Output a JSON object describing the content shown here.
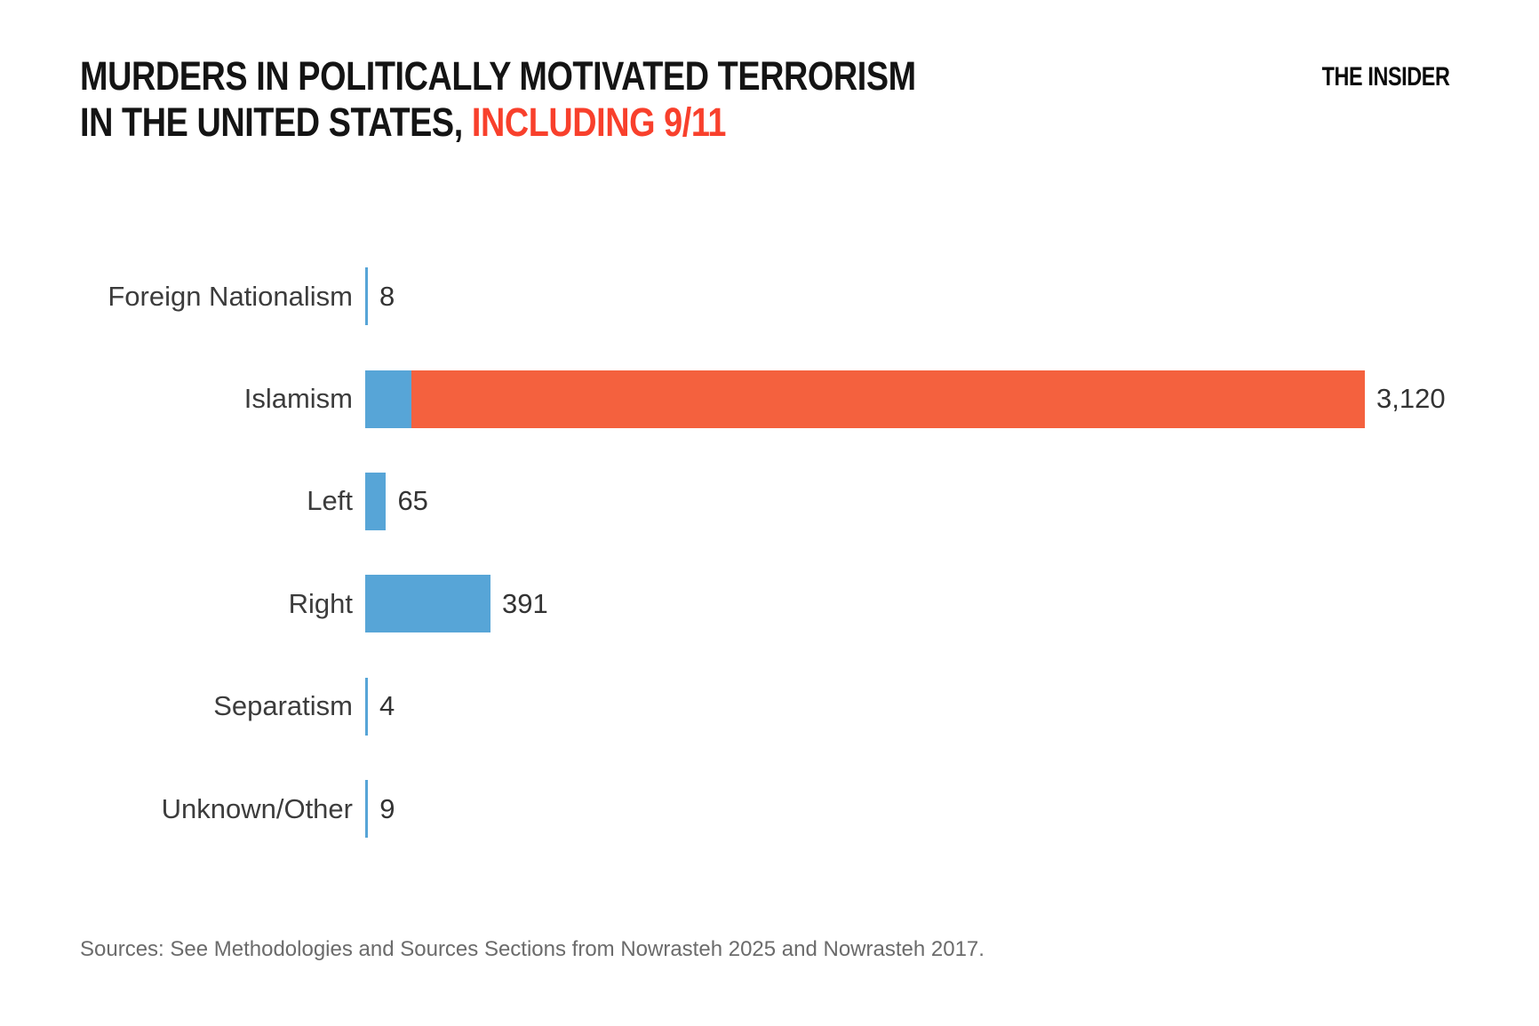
{
  "header": {
    "title_line1": "MURDERS IN POLITICALLY MOTIVATED TERRORISM",
    "title_line2_black": "IN THE UNITED STATES, ",
    "title_line2_red": "INCLUDING 9/11",
    "logo": "THE INSIDER"
  },
  "colors": {
    "blue": "#57A5D7",
    "red": "#F4613E",
    "title_red": "#F8402C"
  },
  "chart_data": {
    "type": "bar",
    "orientation": "horizontal",
    "title": "MURDERS IN POLITICALLY MOTIVATED TERRORISM IN THE UNITED STATES, INCLUDING 9/11",
    "categories": [
      "Foreign Nationalism",
      "Islamism",
      "Left",
      "Right",
      "Separatism",
      "Unknown/Other"
    ],
    "values": [
      8,
      3120,
      65,
      391,
      4,
      9
    ],
    "value_labels": [
      "8",
      "3,120",
      "65",
      "391",
      "4",
      "9"
    ],
    "xlim": [
      0,
      3120
    ],
    "grid": false,
    "legend": false,
    "bar_color": "#57A5D7",
    "highlight_note": "Islamism bar is split: small blue segment (non-9/11 murders) then red segment (9/11 deaths) totaling 3,120",
    "rows": [
      {
        "label": "Foreign Nationalism",
        "value": 8,
        "display": "8",
        "segments": [
          {
            "color": "blue",
            "value": 8
          }
        ]
      },
      {
        "label": "Islamism",
        "value": 3120,
        "display": "3,120",
        "segments": [
          {
            "color": "blue",
            "value": 143
          },
          {
            "color": "red",
            "value": 2977
          }
        ]
      },
      {
        "label": "Left",
        "value": 65,
        "display": "65",
        "segments": [
          {
            "color": "blue",
            "value": 65
          }
        ]
      },
      {
        "label": "Right",
        "value": 391,
        "display": "391",
        "segments": [
          {
            "color": "blue",
            "value": 391
          }
        ]
      },
      {
        "label": "Separatism",
        "value": 4,
        "display": "4",
        "segments": [
          {
            "color": "blue",
            "value": 4
          }
        ]
      },
      {
        "label": "Unknown/Other",
        "value": 9,
        "display": "9",
        "segments": [
          {
            "color": "blue",
            "value": 9
          }
        ]
      }
    ]
  },
  "footer": {
    "sources": "Sources: See Methodologies and Sources Sections from Nowrasteh 2025 and Nowrasteh 2017."
  }
}
